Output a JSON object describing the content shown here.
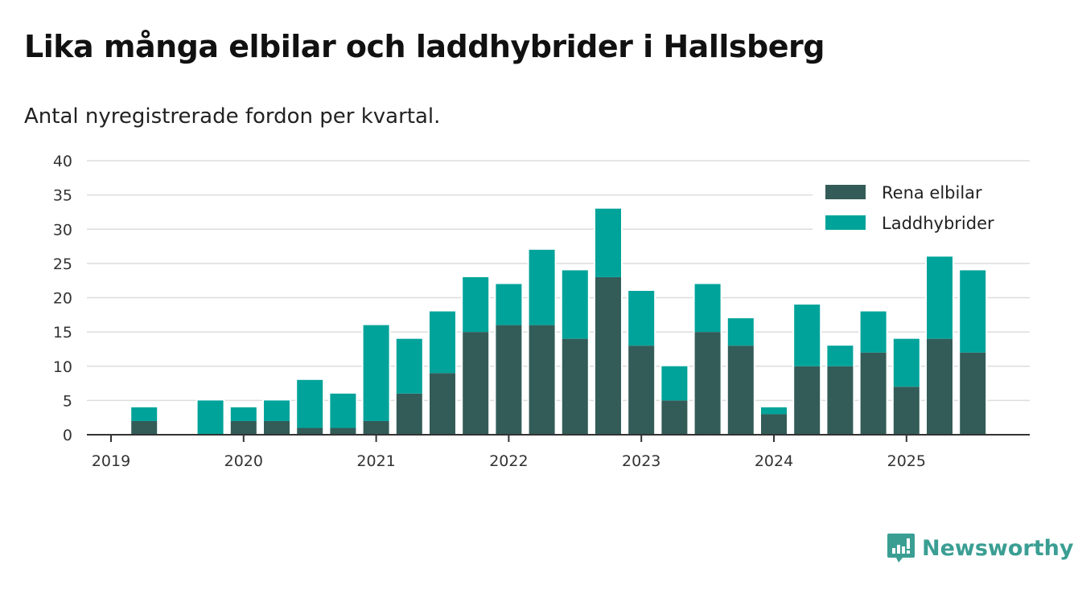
{
  "colors": {
    "elbilar": "#335c58",
    "laddhybrider": "#00a39a",
    "grid": "#dddddd",
    "axis": "#333333",
    "brand": "#3a9e93"
  },
  "brand": {
    "name": "Newsworthy"
  },
  "chart_data": {
    "type": "bar",
    "stacked": true,
    "title": "Lika många elbilar och laddhybrider i Hallsberg",
    "subtitle": "Antal nyregistrerade fordon per kvartal.",
    "xlabel": "",
    "ylabel": "",
    "ylim": [
      0,
      40
    ],
    "yticks": [
      0,
      5,
      10,
      15,
      20,
      25,
      30,
      35,
      40
    ],
    "xticks": [
      "2019",
      "2020",
      "2021",
      "2022",
      "2023",
      "2024",
      "2025"
    ],
    "grid": true,
    "legend_position": "top-right",
    "categories": [
      "2019Q1",
      "2019Q2",
      "2019Q3",
      "2019Q4",
      "2020Q1",
      "2020Q2",
      "2020Q3",
      "2020Q4",
      "2021Q1",
      "2021Q2",
      "2021Q3",
      "2021Q4",
      "2022Q1",
      "2022Q2",
      "2022Q3",
      "2022Q4",
      "2023Q1",
      "2023Q2",
      "2023Q3",
      "2023Q4",
      "2024Q1",
      "2024Q2",
      "2024Q3",
      "2024Q4",
      "2025Q1",
      "2025Q2",
      "2025Q3"
    ],
    "series": [
      {
        "name": "Rena elbilar",
        "values": [
          0,
          2,
          0,
          0,
          2,
          2,
          1,
          1,
          2,
          6,
          9,
          15,
          16,
          16,
          14,
          23,
          13,
          5,
          15,
          13,
          3,
          10,
          10,
          12,
          7,
          14,
          12
        ]
      },
      {
        "name": "Laddhybrider",
        "values": [
          0,
          2,
          0,
          5,
          2,
          3,
          7,
          5,
          14,
          8,
          9,
          8,
          6,
          11,
          10,
          10,
          8,
          5,
          7,
          4,
          1,
          9,
          3,
          6,
          7,
          12,
          12
        ]
      }
    ]
  }
}
